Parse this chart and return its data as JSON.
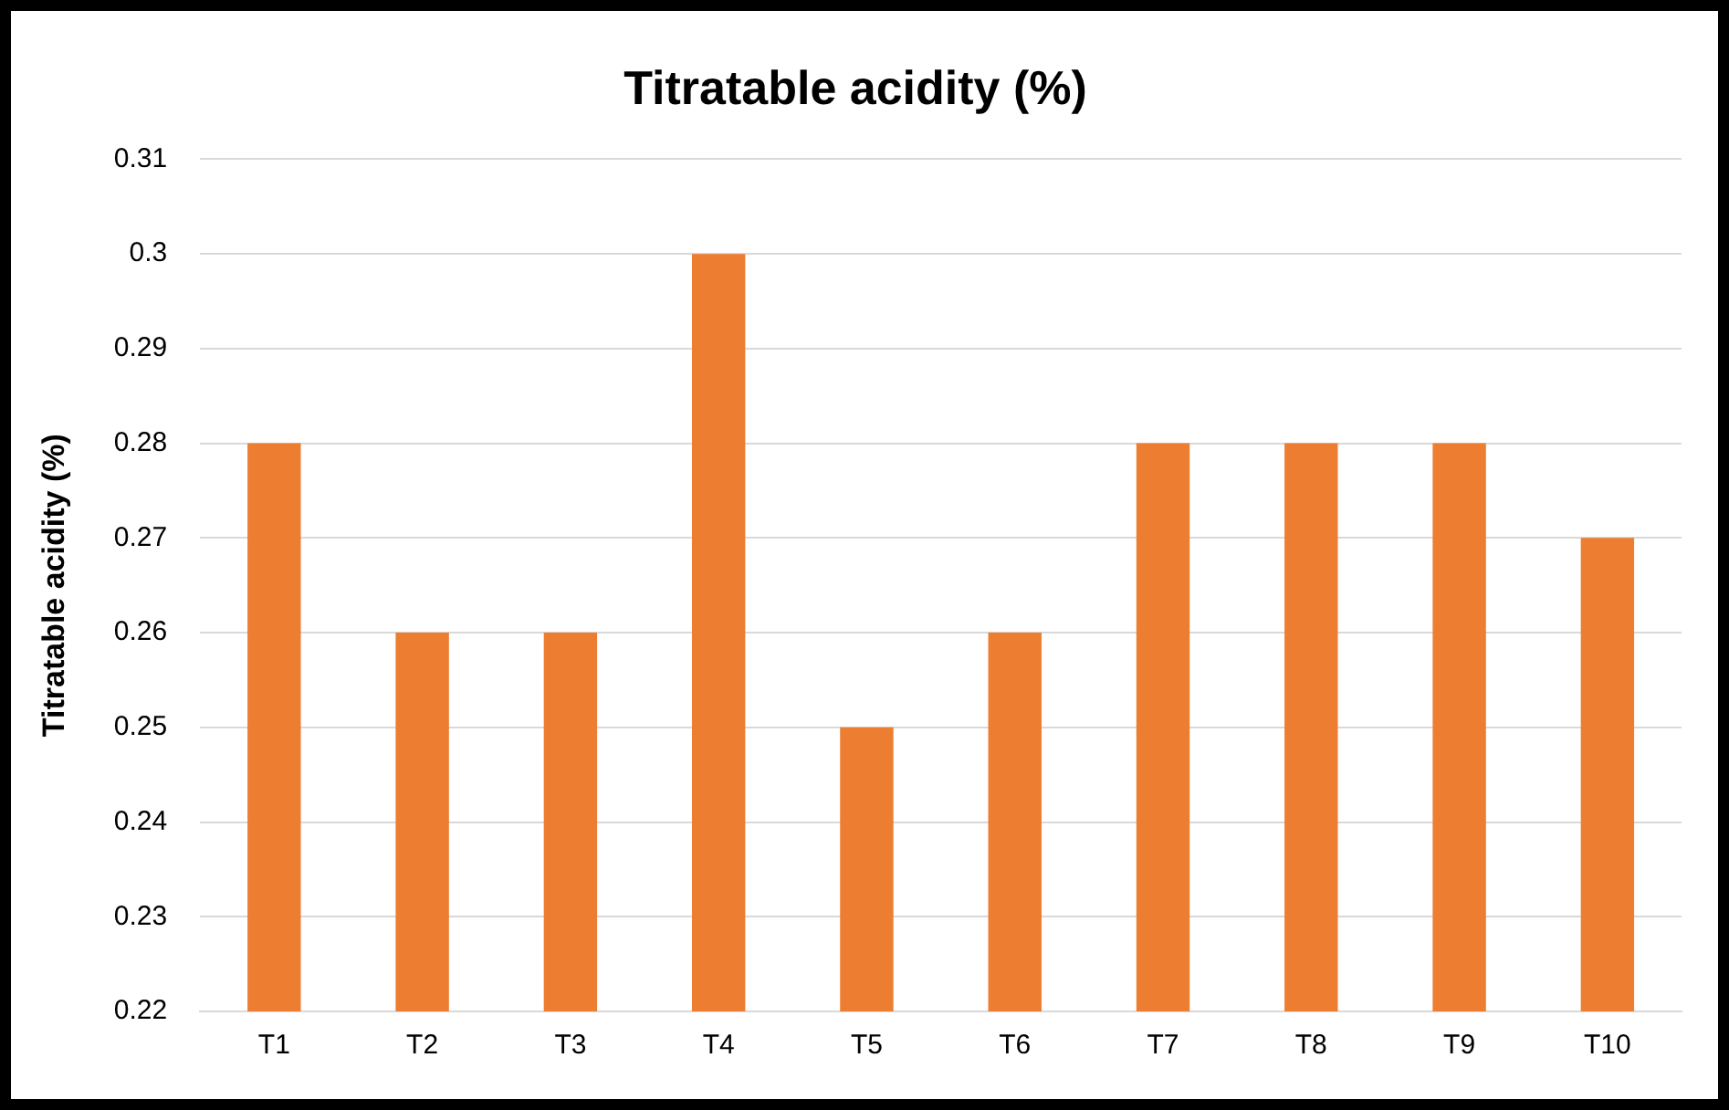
{
  "chart_data": {
    "type": "bar",
    "title": "Titratable acidity (%)",
    "ylabel": "Titratable acidity (%)",
    "categories": [
      "T1",
      "T2",
      "T3",
      "T4",
      "T5",
      "T6",
      "T7",
      "T8",
      "T9",
      "T10"
    ],
    "values": [
      0.28,
      0.26,
      0.26,
      0.3,
      0.25,
      0.26,
      0.28,
      0.28,
      0.28,
      0.27
    ],
    "color": "#ed7d31",
    "ylim": [
      0.22,
      0.31
    ],
    "yticks": [
      0.22,
      0.23,
      0.24,
      0.25,
      0.26,
      0.27,
      0.28,
      0.29,
      0.3,
      0.31
    ],
    "grid": "y",
    "legend": false
  }
}
